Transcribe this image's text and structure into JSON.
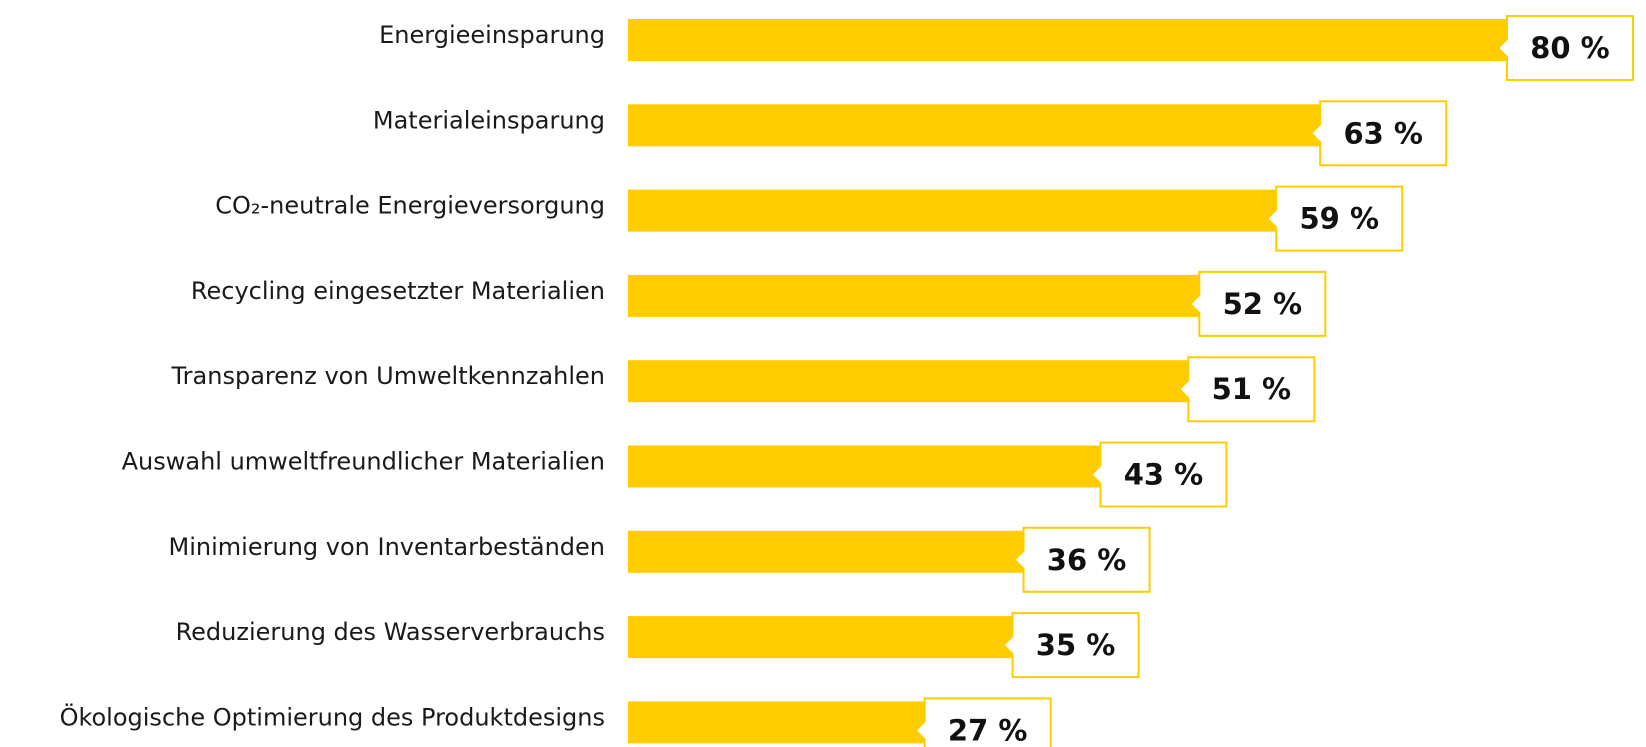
{
  "chart_data": {
    "type": "barh",
    "categories": [
      "Energieeinsparung",
      "Materialeinsparung",
      "CO₂-neutrale Energieversorgung",
      "Recycling eingesetzter Materialien",
      "Transparenz von Umweltkennzahlen",
      "Auswahl umweltfreundlicher Materialien",
      "Minimierung von Inventarbeständen",
      "Reduzierung des Wasserverbrauchs",
      "Ökologische Optimierung des Produktdesigns"
    ],
    "values": [
      80,
      63,
      59,
      52,
      51,
      43,
      36,
      35,
      27
    ],
    "value_labels": [
      "80 %",
      "63 %",
      "59 %",
      "52 %",
      "51 %",
      "43 %",
      "36 %",
      "35 %",
      "27 %"
    ],
    "color": "#FFCC00"
  }
}
